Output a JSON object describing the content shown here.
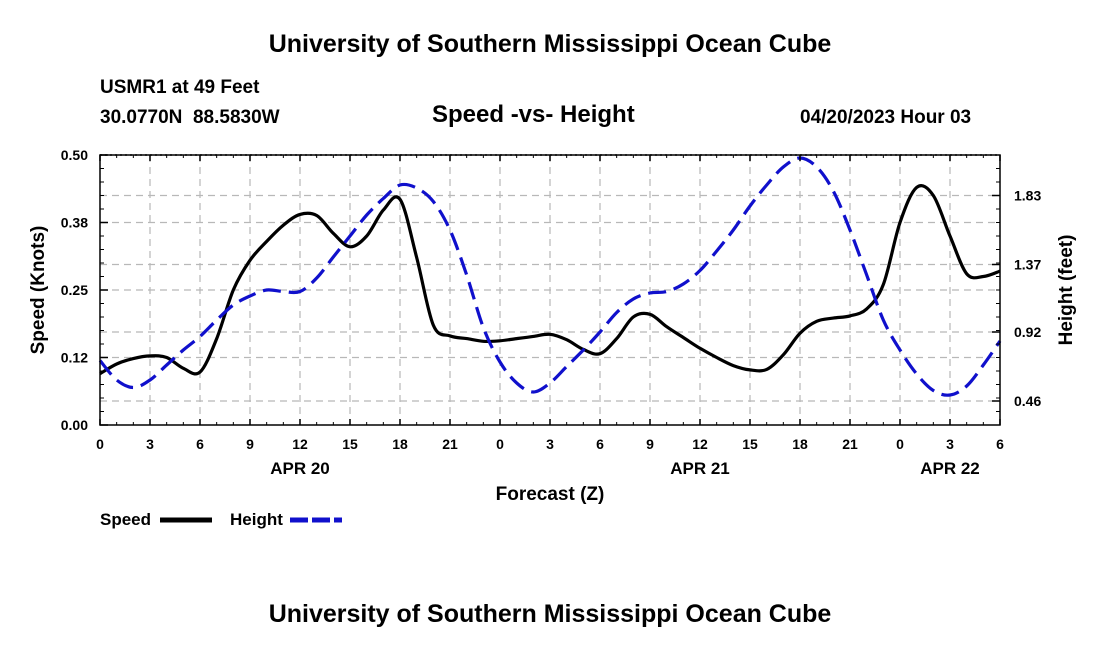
{
  "page": {
    "title_top": "University of Southern Mississippi Ocean Cube",
    "title_bottom": "University of Southern Mississippi Ocean Cube",
    "station": "USMR1 at 49 Feet",
    "coords": "30.0770N  88.5830W",
    "subtitle": "Speed -vs- Height",
    "datetime": "04/20/2023 Hour 03"
  },
  "colors": {
    "speed": "#000000",
    "height": "#1010cc",
    "grid": "#b8b8b8"
  },
  "legend": [
    {
      "label": "Speed",
      "series": "speed"
    },
    {
      "label": "Height",
      "series": "height"
    }
  ],
  "chart_data": {
    "type": "line",
    "title": "Speed -vs- Height",
    "xlabel": "Forecast (Z)",
    "ylabel": "Speed (Knots)",
    "y2label": "Height (feet)",
    "xlim": [
      0,
      54
    ],
    "ylim": [
      0,
      0.5
    ],
    "y2lim": [
      0.3,
      2.1
    ],
    "x_ticks": [
      0,
      3,
      6,
      9,
      12,
      15,
      18,
      21,
      24,
      27,
      30,
      33,
      36,
      39,
      42,
      45,
      48,
      51,
      54
    ],
    "x_tick_labels": [
      "0",
      "3",
      "6",
      "9",
      "12",
      "15",
      "18",
      "21",
      "0",
      "3",
      "6",
      "9",
      "12",
      "15",
      "18",
      "21",
      "0",
      "3",
      "6"
    ],
    "date_labels": [
      {
        "x": 12,
        "text": "APR 20"
      },
      {
        "x": 36,
        "text": "APR 21"
      },
      {
        "x": 51,
        "text": "APR 22"
      }
    ],
    "y_ticks": [
      0.0,
      0.125,
      0.25,
      0.375,
      0.5
    ],
    "y_tick_labels": [
      "0.00",
      "0.12",
      "0.25",
      "0.38",
      "0.50"
    ],
    "y2_ticks": [
      0.46,
      0.92,
      1.37,
      1.83
    ],
    "y2_tick_labels": [
      "0.46",
      "0.92",
      "1.37",
      "1.83"
    ],
    "grid": true,
    "series": [
      {
        "name": "Speed",
        "axis": "left",
        "x": [
          0,
          1,
          2,
          3,
          4,
          5,
          6,
          7,
          8,
          9,
          10,
          11,
          12,
          13,
          14,
          15,
          16,
          17,
          18,
          19,
          20,
          21,
          22,
          23,
          24,
          25,
          26,
          27,
          28,
          29,
          30,
          31,
          32,
          33,
          34,
          35,
          36,
          37,
          38,
          39,
          40,
          41,
          42,
          43,
          44,
          45,
          46,
          47,
          48,
          49,
          50,
          51,
          52,
          53,
          54
        ],
        "values": [
          0.095,
          0.113,
          0.123,
          0.128,
          0.125,
          0.105,
          0.098,
          0.16,
          0.25,
          0.305,
          0.34,
          0.37,
          0.39,
          0.388,
          0.355,
          0.33,
          0.35,
          0.398,
          0.418,
          0.31,
          0.185,
          0.165,
          0.16,
          0.155,
          0.156,
          0.16,
          0.164,
          0.168,
          0.158,
          0.14,
          0.132,
          0.16,
          0.2,
          0.205,
          0.182,
          0.162,
          0.142,
          0.125,
          0.11,
          0.102,
          0.103,
          0.13,
          0.17,
          0.192,
          0.198,
          0.202,
          0.215,
          0.26,
          0.375,
          0.44,
          0.425,
          0.35,
          0.28,
          0.275,
          0.285
        ]
      },
      {
        "name": "Height",
        "axis": "right",
        "x": [
          0,
          1,
          2,
          3,
          4,
          5,
          6,
          7,
          8,
          9,
          10,
          11,
          12,
          13,
          14,
          15,
          16,
          17,
          18,
          19,
          20,
          21,
          22,
          23,
          24,
          25,
          26,
          27,
          28,
          29,
          30,
          31,
          32,
          33,
          34,
          35,
          36,
          37,
          38,
          39,
          40,
          41,
          42,
          43,
          44,
          45,
          46,
          47,
          48,
          49,
          50,
          51,
          52,
          53,
          54
        ],
        "values": [
          0.73,
          0.6,
          0.55,
          0.6,
          0.7,
          0.8,
          0.89,
          1.0,
          1.1,
          1.16,
          1.2,
          1.19,
          1.19,
          1.28,
          1.42,
          1.56,
          1.7,
          1.81,
          1.9,
          1.88,
          1.79,
          1.6,
          1.3,
          0.95,
          0.72,
          0.58,
          0.52,
          0.58,
          0.69,
          0.8,
          0.92,
          1.05,
          1.14,
          1.18,
          1.19,
          1.24,
          1.33,
          1.46,
          1.6,
          1.76,
          1.9,
          2.02,
          2.08,
          2.02,
          1.86,
          1.6,
          1.3,
          1.0,
          0.8,
          0.64,
          0.53,
          0.5,
          0.56,
          0.7,
          0.86
        ]
      }
    ]
  }
}
